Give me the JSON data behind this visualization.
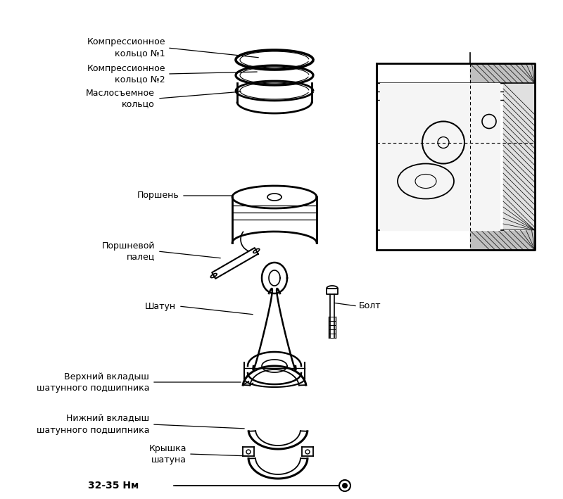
{
  "background_color": "#ffffff",
  "line_color": "#000000",
  "text_color": "#000000",
  "font_size": 9.0,
  "labels": {
    "ring1": "Компрессионное\nкольцо №1",
    "ring2": "Компрессионное\nкольцо №2",
    "oil_ring": "Маслосъемное\nкольцо",
    "piston": "Поршень",
    "pin": "Поршневой\nпалец",
    "rod": "Шатун",
    "bolt": "Болт",
    "upper_bearing": "Верхний вкладыш\nшатунного подшипника",
    "lower_bearing": "Нижний вкладыш\nшатунного подшипника",
    "cap": "Крышка\nшатуна",
    "torque": "32-35 Нм"
  }
}
